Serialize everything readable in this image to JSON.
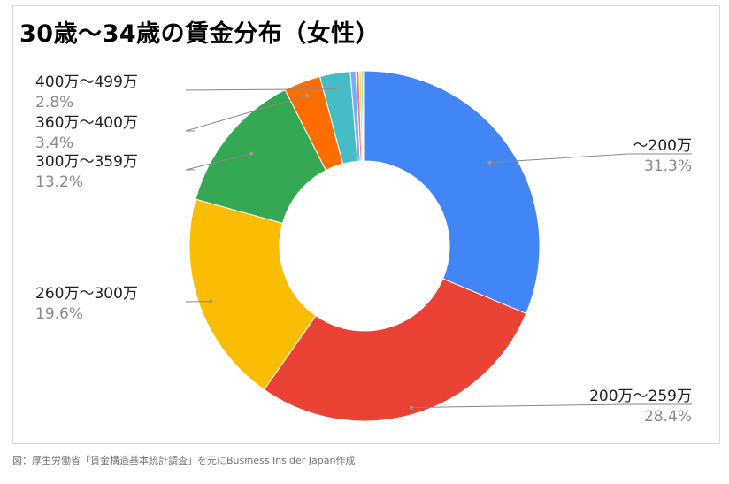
{
  "chart_data": {
    "type": "pie",
    "donut": true,
    "title": "30歳〜34歳の賃金分布（女性）",
    "slices": [
      {
        "label": "〜200万",
        "value": 31.3,
        "pct_label": "31.3%",
        "color": "#4285f4"
      },
      {
        "label": "200万〜259万",
        "value": 28.4,
        "pct_label": "28.4%",
        "color": "#ea4335"
      },
      {
        "label": "260万〜300万",
        "value": 19.6,
        "pct_label": "19.6%",
        "color": "#fbbc04"
      },
      {
        "label": "300万〜359万",
        "value": 13.2,
        "pct_label": "13.2%",
        "color": "#34a853"
      },
      {
        "label": "360万〜400万",
        "value": 3.4,
        "pct_label": "3.4%",
        "color": "#ff6d01"
      },
      {
        "label": "400万〜499万",
        "value": 2.8,
        "pct_label": "2.8%",
        "color": "#46bdc6"
      },
      {
        "label": "",
        "value": 0.5,
        "color": "#7baaf7"
      },
      {
        "label": "",
        "value": 0.3,
        "color": "#f07b72"
      },
      {
        "label": "",
        "value": 0.2,
        "color": "#fcd04f"
      },
      {
        "label": "",
        "value": 0.15,
        "color": "#71c287"
      },
      {
        "label": "",
        "value": 0.15,
        "color": "#ff994d"
      }
    ],
    "legend": "none"
  },
  "caption": "図：厚生労働省「賃金構造基本統計調査」を元にBusiness Insider Japan作成"
}
